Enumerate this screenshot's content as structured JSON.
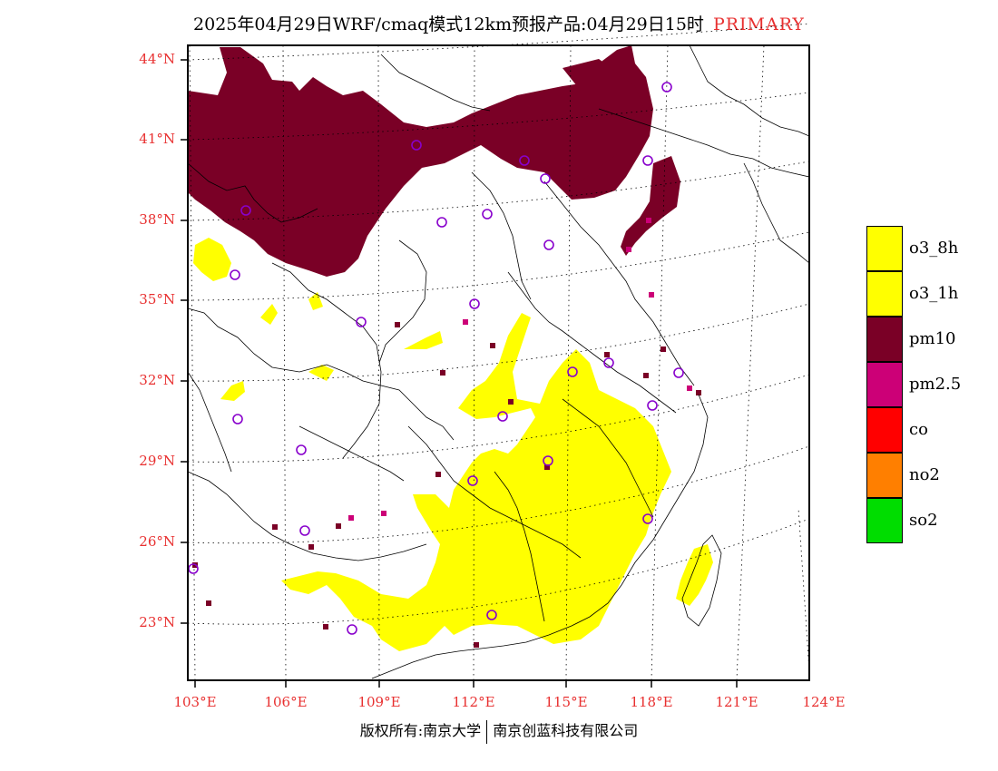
{
  "title": {
    "main": "2025年04月29日WRF/cmaq模式12km预报产品:04月29日15时",
    "tag": "PRIMARY",
    "tag_color": "#e83030"
  },
  "axes": {
    "lat_labels": [
      "44°N",
      "41°N",
      "38°N",
      "35°N",
      "32°N",
      "29°N",
      "26°N",
      "23°N"
    ],
    "lon_labels": [
      "103°E",
      "106°E",
      "109°E",
      "112°E",
      "115°E",
      "118°E",
      "121°E",
      "124°E"
    ],
    "label_color": "#e83030",
    "grid": "dotted"
  },
  "legend": {
    "items": [
      {
        "label": "o3_8h",
        "color": "#ffff00"
      },
      {
        "label": "o3_1h",
        "color": "#ffff00"
      },
      {
        "label": "pm10",
        "color": "#7a0026"
      },
      {
        "label": "pm2.5",
        "color": "#cc0077"
      },
      {
        "label": "co",
        "color": "#ff0000"
      },
      {
        "label": "no2",
        "color": "#ff7f00"
      },
      {
        "label": "so2",
        "color": "#00dd00"
      }
    ]
  },
  "map": {
    "primary_pollutant_regions": [
      {
        "pollutant": "pm10",
        "area": "northern China / Inner Mongolia / Hebei"
      },
      {
        "pollutant": "o3",
        "area": "southern and central-eastern China"
      },
      {
        "pollutant": "pm2.5",
        "area": "scattered pixels"
      }
    ],
    "station_marker": "purple-circle",
    "station_color": "#8800cc"
  },
  "footer": {
    "left": "版权所有:南京大学",
    "right": "南京创蓝科技有限公司"
  }
}
